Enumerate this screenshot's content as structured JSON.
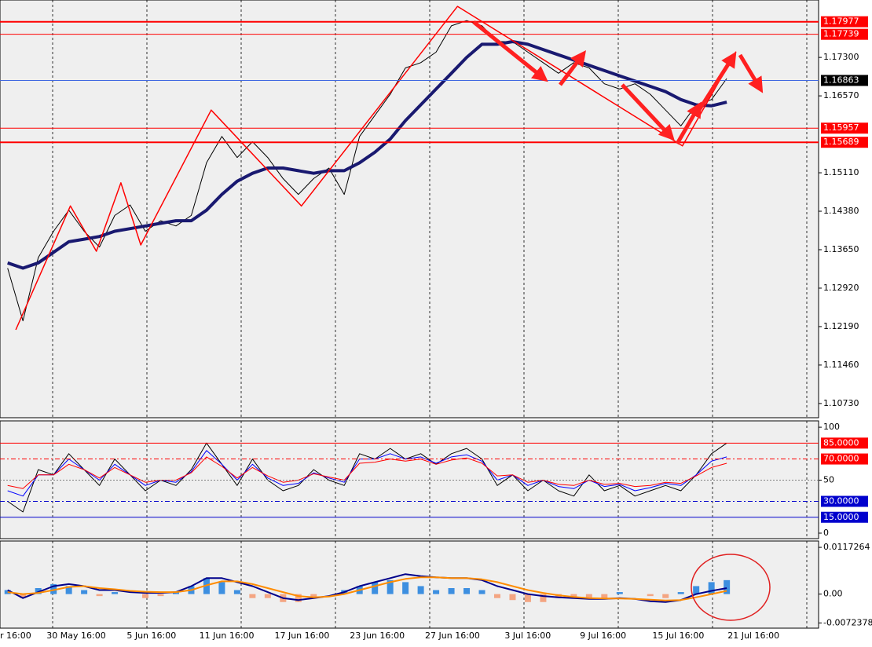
{
  "chart_data": [
    {
      "type": "line",
      "xlim": [
        -0.5,
        53
      ],
      "ylim": [
        1.1046,
        1.1839
      ],
      "grid": "vertical",
      "yticks": [
        {
          "value": 1.173,
          "label": "1.17300"
        },
        {
          "value": 1.1657,
          "label": "1.16570"
        },
        {
          "value": 1.1511,
          "label": "1.15110"
        },
        {
          "value": 1.1438,
          "label": "1.14380"
        },
        {
          "value": 1.1365,
          "label": "1.13650"
        },
        {
          "value": 1.1292,
          "label": "1.12920"
        },
        {
          "value": 1.1219,
          "label": "1.12190"
        },
        {
          "value": 1.1146,
          "label": "1.11460"
        },
        {
          "value": 1.1073,
          "label": "1.10730"
        }
      ],
      "levels": [
        {
          "value": 1.17977,
          "color": "#ff0000",
          "width": 2,
          "box": "#ff0000"
        },
        {
          "value": 1.17739,
          "color": "#ff0000",
          "width": 1,
          "box": "#ff0000"
        },
        {
          "value": 1.16863,
          "color": "#4169e1",
          "width": 1,
          "box": "#000000"
        },
        {
          "value": 1.15957,
          "color": "#ff0000",
          "width": 1,
          "box": "#ff0000"
        },
        {
          "value": 1.15689,
          "color": "#ff0000",
          "width": 2,
          "box": "#ff0000"
        }
      ],
      "xtick_labels": [
        "r 16:00",
        "30 May 16:00",
        "5 Jun 16:00",
        "11 Jun 16:00",
        "17 Jun 16:00",
        "23 Jun 16:00",
        "27 Jun 16:00",
        "3 Jul 16:00",
        "9 Jul 16:00",
        "15 Jul 16:00",
        "21 Jul 16:00"
      ],
      "series": [
        {
          "color": "#000000",
          "width": 1,
          "values": [
            1.133,
            1.123,
            1.135,
            1.14,
            1.144,
            1.14,
            1.137,
            1.143,
            1.145,
            1.14,
            1.142,
            1.141,
            1.143,
            1.153,
            1.158,
            1.154,
            1.157,
            1.154,
            1.15,
            1.147,
            1.15,
            1.152,
            1.147,
            1.158,
            1.162,
            1.166,
            1.171,
            1.172,
            1.174,
            1.179,
            1.18,
            1.179,
            1.176,
            1.176,
            1.174,
            1.172,
            1.17,
            1.172,
            1.171,
            1.168,
            1.167,
            1.168,
            1.166,
            1.163,
            1.16,
            1.164,
            1.165,
            1.169
          ]
        },
        {
          "color": "#191970",
          "width": 4,
          "values": [
            1.134,
            1.133,
            1.134,
            1.136,
            1.138,
            1.1385,
            1.139,
            1.14,
            1.1405,
            1.141,
            1.1415,
            1.142,
            1.142,
            1.144,
            1.147,
            1.1495,
            1.151,
            1.152,
            1.152,
            1.1515,
            1.151,
            1.1515,
            1.1515,
            1.153,
            1.155,
            1.1575,
            1.161,
            1.164,
            1.167,
            1.17,
            1.173,
            1.1755,
            1.1755,
            1.176,
            1.1755,
            1.1745,
            1.1735,
            1.1725,
            1.1715,
            1.1705,
            1.1695,
            1.1685,
            1.1675,
            1.1665,
            1.165,
            1.164,
            1.1638,
            1.1645
          ]
        },
        {
          "color": "#ff0000",
          "width": 1.5,
          "x": [
            0.53,
            4.1,
            5.8,
            7.4,
            8.7,
            13.3,
            19.2,
            29.4,
            44.1,
            47.6
          ],
          "values": [
            1.1213,
            1.1448,
            1.1362,
            1.1492,
            1.1374,
            1.163,
            1.1448,
            1.1827,
            1.1562,
            1.1741
          ]
        }
      ]
    },
    {
      "type": "line",
      "xlim": [
        -0.5,
        53
      ],
      "ylim": [
        -5.2,
        106
      ],
      "yticks": [
        100,
        50,
        0
      ],
      "levels": [
        {
          "value": 85,
          "label": "85.0000",
          "color": "#ff0000",
          "width": 1,
          "box": "#ff0000"
        },
        {
          "value": 70,
          "label": "70.0000",
          "color": "#ff0000",
          "width": 1,
          "dash": "6,3,2,3",
          "box": "#ff0000"
        },
        {
          "value": 50,
          "color": "#808080",
          "width": 1,
          "dash": "2,2"
        },
        {
          "value": 30,
          "label": "30.0000",
          "color": "#0000cd",
          "width": 1,
          "dash": "6,3,2,3",
          "box": "#0000cd"
        },
        {
          "value": 15,
          "label": "15.0000",
          "color": "#0000cd",
          "width": 1,
          "box": "#0000cd"
        }
      ],
      "series": [
        {
          "color": "#000000",
          "width": 1,
          "values": [
            30,
            20,
            60,
            55,
            75,
            60,
            45,
            70,
            55,
            40,
            50,
            45,
            60,
            85,
            65,
            45,
            70,
            50,
            40,
            45,
            60,
            50,
            45,
            75,
            70,
            80,
            70,
            75,
            65,
            75,
            80,
            70,
            45,
            55,
            40,
            50,
            40,
            35,
            55,
            40,
            45,
            35,
            40,
            45,
            40,
            55,
            75,
            85
          ]
        },
        {
          "color": "#0000ff",
          "width": 1,
          "values": [
            40,
            35,
            55,
            55,
            70,
            60,
            50,
            65,
            55,
            45,
            50,
            48,
            58,
            78,
            65,
            50,
            65,
            52,
            45,
            47,
            57,
            52,
            48,
            70,
            70,
            75,
            70,
            72,
            66,
            72,
            74,
            68,
            50,
            55,
            45,
            50,
            44,
            42,
            50,
            44,
            46,
            40,
            43,
            47,
            45,
            55,
            68,
            72
          ]
        },
        {
          "color": "#ff0000",
          "width": 1,
          "values": [
            45,
            42,
            55,
            55,
            65,
            60,
            52,
            62,
            55,
            48,
            50,
            50,
            57,
            72,
            63,
            52,
            62,
            54,
            48,
            50,
            56,
            53,
            50,
            66,
            67,
            70,
            68,
            70,
            65,
            69,
            71,
            66,
            54,
            55,
            48,
            50,
            46,
            45,
            50,
            46,
            47,
            44,
            45,
            48,
            47,
            54,
            62,
            66
          ]
        }
      ]
    },
    {
      "type": "macd",
      "xlim": [
        -0.5,
        53
      ],
      "ylim": [
        -0.00855,
        0.01332
      ],
      "yticks": [
        0.0117264,
        {
          "value": 0,
          "label": "0.00"
        },
        -0.0072378
      ],
      "histogram": {
        "positive_color": "#3d8fe0",
        "negative_color": "#f4a582",
        "values": [
          0.001,
          -0.001,
          0.0015,
          0.0025,
          0.002,
          0.001,
          -0.0005,
          0.0005,
          0,
          -0.001,
          -0.0005,
          0.0005,
          0.002,
          0.004,
          0.003,
          0.001,
          -0.001,
          -0.001,
          -0.002,
          -0.002,
          -0.001,
          0,
          0.001,
          0.002,
          0.003,
          0.0035,
          0.003,
          0.002,
          0.001,
          0.0015,
          0.0015,
          0.001,
          -0.001,
          -0.0015,
          -0.002,
          -0.002,
          -0.001,
          -0.001,
          -0.001,
          -0.001,
          0.0005,
          0,
          -0.0005,
          -0.001,
          0.0005,
          0.002,
          0.003,
          0.0035
        ]
      },
      "series": [
        {
          "color": "#00008b",
          "width": 2,
          "values": [
            0.001,
            -0.001,
            0.0005,
            0.002,
            0.0025,
            0.002,
            0.001,
            0.001,
            0.0005,
            0.0003,
            0.0003,
            0.0005,
            0.002,
            0.004,
            0.004,
            0.003,
            0.002,
            0.0005,
            -0.001,
            -0.0015,
            -0.001,
            -0.0005,
            0.0005,
            0.002,
            0.003,
            0.004,
            0.005,
            0.0045,
            0.0042,
            0.004,
            0.004,
            0.0035,
            0.002,
            0.001,
            0,
            -0.0005,
            -0.0008,
            -0.001,
            -0.0012,
            -0.0012,
            -0.001,
            -0.0012,
            -0.0018,
            -0.002,
            -0.0015,
            0,
            0.0008,
            0.0015
          ]
        },
        {
          "color": "#ff8c00",
          "width": 2,
          "values": [
            0.0005,
            0,
            0.0003,
            0.001,
            0.0018,
            0.002,
            0.0015,
            0.0012,
            0.0008,
            0.0006,
            0.0005,
            0.0005,
            0.001,
            0.0022,
            0.0032,
            0.0032,
            0.0025,
            0.0015,
            0.0005,
            -0.0005,
            -0.0008,
            -0.0006,
            0,
            0.001,
            0.002,
            0.003,
            0.0038,
            0.0042,
            0.0042,
            0.004,
            0.004,
            0.0037,
            0.003,
            0.002,
            0.001,
            0.0003,
            -0.0003,
            -0.0007,
            -0.001,
            -0.0011,
            -0.0011,
            -0.0012,
            -0.0014,
            -0.0016,
            -0.0015,
            -0.0008,
            0,
            0.0008
          ]
        }
      ]
    }
  ]
}
